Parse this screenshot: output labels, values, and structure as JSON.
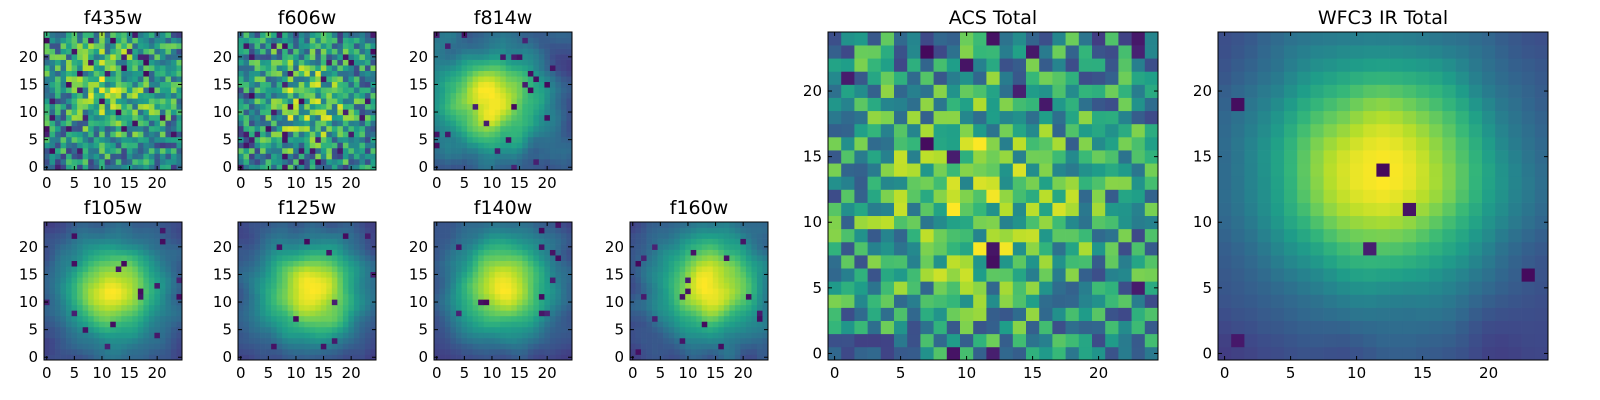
{
  "figure": {
    "colormap": "viridis",
    "grid": false,
    "colorbar": false
  },
  "chart_data": [
    {
      "type": "heatmap",
      "title": "f435w",
      "grid_size": 25,
      "xlim": [
        0,
        24
      ],
      "ylim": [
        0,
        24
      ],
      "x_ticks": [
        "0",
        "5",
        "10",
        "15",
        "20"
      ],
      "y_ticks": [
        "0",
        "5",
        "10",
        "15",
        "20"
      ],
      "structure": "noise",
      "noise": 0.55,
      "peak": [
        12,
        15
      ],
      "dark_pixels": 0.06,
      "seed": 11
    },
    {
      "type": "heatmap",
      "title": "f606w",
      "grid_size": 25,
      "xlim": [
        0,
        24
      ],
      "ylim": [
        0,
        24
      ],
      "x_ticks": [
        "0",
        "5",
        "10",
        "15",
        "20"
      ],
      "y_ticks": [
        "0",
        "5",
        "10",
        "15",
        "20"
      ],
      "structure": "noise",
      "noise": 0.55,
      "peak": [
        12,
        12
      ],
      "dark_pixels": 0.05,
      "seed": 23
    },
    {
      "type": "heatmap",
      "title": "f814w",
      "grid_size": 25,
      "xlim": [
        0,
        24
      ],
      "ylim": [
        0,
        24
      ],
      "x_ticks": [
        "0",
        "5",
        "10",
        "15",
        "20"
      ],
      "y_ticks": [
        "0",
        "5",
        "10",
        "15",
        "20"
      ],
      "structure": "blob",
      "noise": 0.45,
      "peak": [
        10,
        12
      ],
      "dark_pixels": 0.04,
      "seed": 37
    },
    {
      "type": "heatmap",
      "title": "f105w",
      "grid_size": 25,
      "xlim": [
        0,
        24
      ],
      "ylim": [
        0,
        24
      ],
      "x_ticks": [
        "0",
        "5",
        "10",
        "15",
        "20"
      ],
      "y_ticks": [
        "0",
        "5",
        "10",
        "15",
        "20"
      ],
      "structure": "blob",
      "noise": 0.3,
      "peak": [
        12,
        12
      ],
      "dark_pixels": 0.02,
      "seed": 41
    },
    {
      "type": "heatmap",
      "title": "f125w",
      "grid_size": 25,
      "xlim": [
        0,
        24
      ],
      "ylim": [
        0,
        24
      ],
      "x_ticks": [
        "0",
        "5",
        "10",
        "15",
        "20"
      ],
      "y_ticks": [
        "0",
        "5",
        "10",
        "15",
        "20"
      ],
      "structure": "blob",
      "noise": 0.3,
      "peak": [
        13,
        12
      ],
      "dark_pixels": 0.02,
      "seed": 53
    },
    {
      "type": "heatmap",
      "title": "f140w",
      "grid_size": 25,
      "xlim": [
        0,
        24
      ],
      "ylim": [
        0,
        24
      ],
      "x_ticks": [
        "0",
        "5",
        "10",
        "15",
        "20"
      ],
      "y_ticks": [
        "0",
        "5",
        "10",
        "15",
        "20"
      ],
      "structure": "blob",
      "noise": 0.28,
      "peak": [
        12,
        13
      ],
      "dark_pixels": 0.02,
      "seed": 67
    },
    {
      "type": "heatmap",
      "title": "f160w",
      "grid_size": 25,
      "xlim": [
        0,
        24
      ],
      "ylim": [
        0,
        24
      ],
      "x_ticks": [
        "0",
        "5",
        "10",
        "15",
        "20"
      ],
      "y_ticks": [
        "0",
        "5",
        "10",
        "15",
        "20"
      ],
      "structure": "blob",
      "noise": 0.32,
      "peak": [
        14,
        13
      ],
      "dark_pixels": 0.04,
      "seed": 79
    },
    {
      "type": "heatmap",
      "title": "ACS Total",
      "grid_size": 25,
      "xlim": [
        0,
        24
      ],
      "ylim": [
        0,
        24
      ],
      "x_ticks": [
        "0",
        "5",
        "10",
        "15",
        "20"
      ],
      "y_ticks": [
        "0",
        "5",
        "10",
        "15",
        "20"
      ],
      "structure": "noise",
      "noise": 0.42,
      "peak": [
        11,
        12
      ],
      "dark_pixels": 0.03,
      "seed": 97
    },
    {
      "type": "heatmap",
      "title": "WFC3 IR Total",
      "grid_size": 25,
      "xlim": [
        0,
        24
      ],
      "ylim": [
        0,
        24
      ],
      "x_ticks": [
        "0",
        "5",
        "10",
        "15",
        "20"
      ],
      "y_ticks": [
        "0",
        "5",
        "10",
        "15",
        "20"
      ],
      "structure": "blob",
      "noise": 0.18,
      "peak": [
        12,
        14
      ],
      "dark_pixels": 0.02,
      "seed": 131
    }
  ]
}
